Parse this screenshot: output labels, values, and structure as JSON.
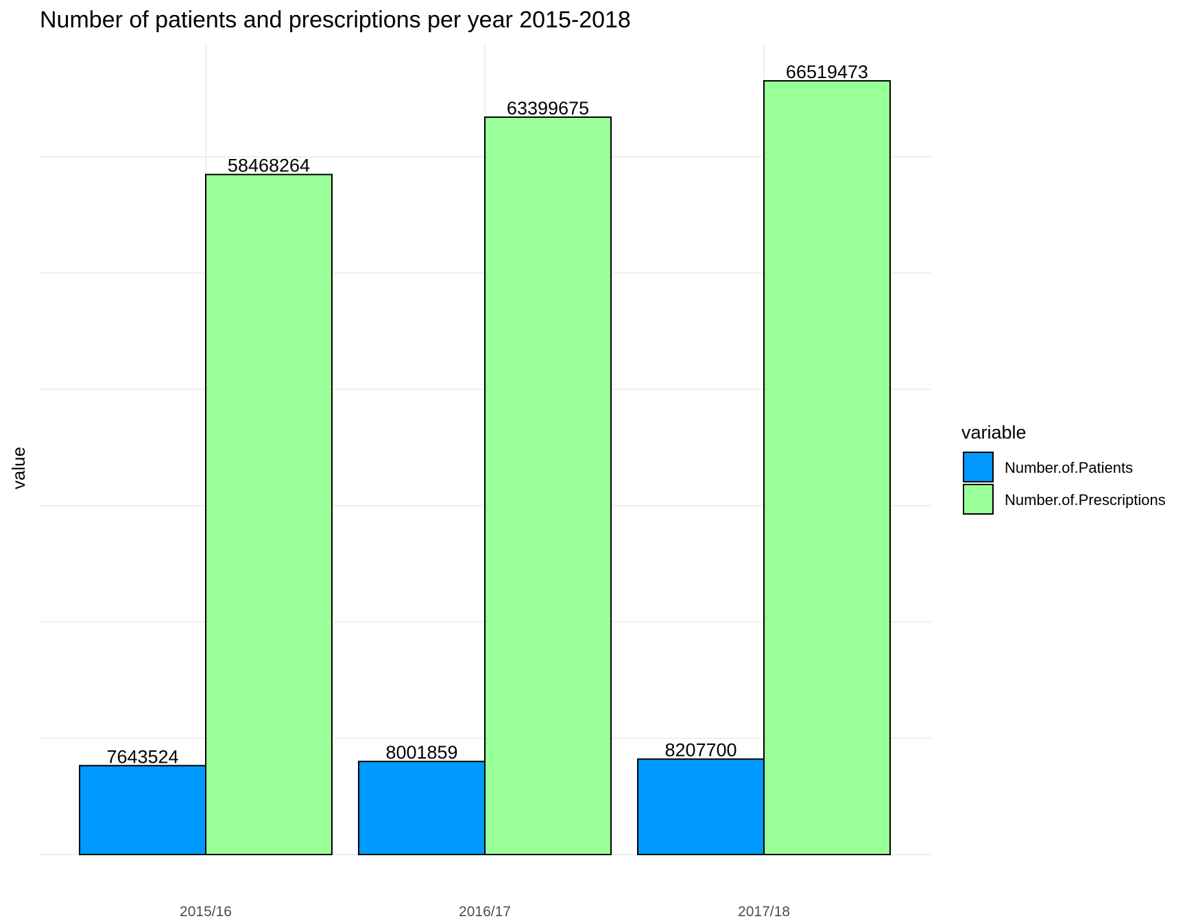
{
  "chart_data": {
    "type": "bar",
    "title": "Number of patients and prescriptions per year 2015-2018",
    "xlabel": "",
    "ylabel": "value",
    "categories": [
      "2015/16",
      "2016/17",
      "2017/18"
    ],
    "series": [
      {
        "name": "Number.of.Patients",
        "values": [
          7643524,
          8001859,
          8207700
        ],
        "color": "#0099ff"
      },
      {
        "name": "Number.of.Prescriptions",
        "values": [
          58468264,
          63399675,
          66519473
        ],
        "color": "#99ff99"
      }
    ],
    "ylim": [
      0,
      66519473
    ],
    "y_tick_labels_shown": false,
    "grid": true,
    "legend": {
      "title": "variable",
      "position": "right"
    },
    "data_labels": true
  }
}
